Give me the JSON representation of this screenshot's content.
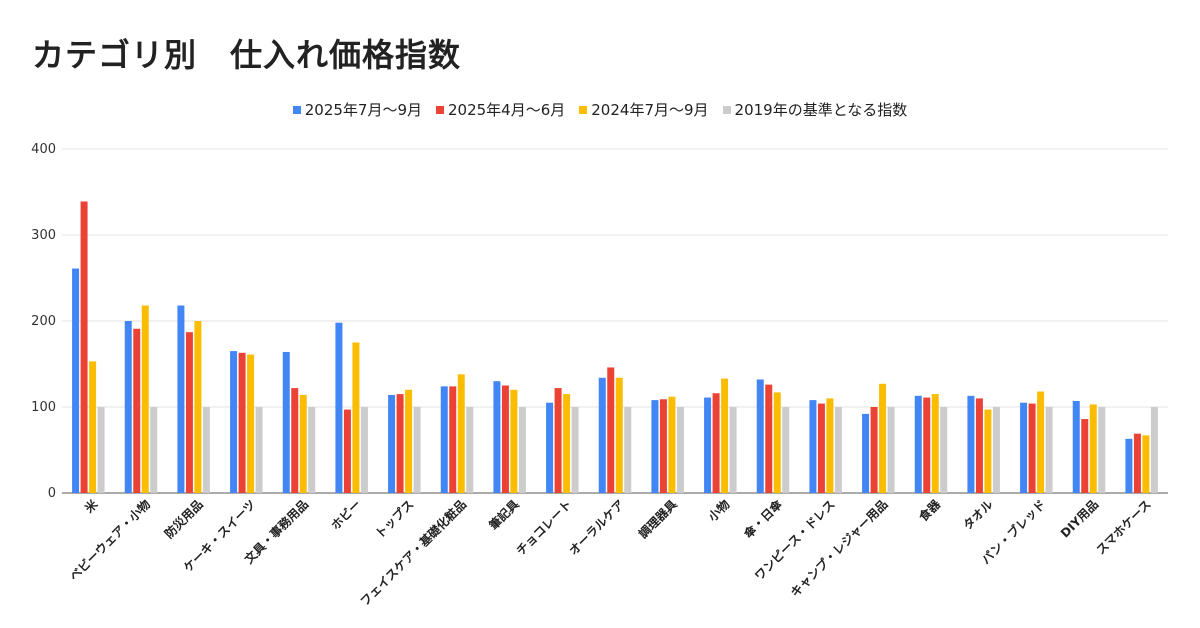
{
  "chart_data": {
    "type": "bar",
    "title": "カテゴリ別　仕入れ価格指数",
    "xlabel": "",
    "ylabel": "",
    "ylim": [
      0,
      400
    ],
    "yticks": [
      0,
      100,
      200,
      300,
      400
    ],
    "grid": true,
    "legend_position": "top",
    "categories": [
      "米",
      "ベビーウェア・小物",
      "防災用品",
      "ケーキ・スイーツ",
      "文具・事務用品",
      "ホビー",
      "トップス",
      "フェイスケア・基礎化粧品",
      "筆記具",
      "チョコレート",
      "オーラルケア",
      "調理器具",
      "小物",
      "傘・日傘",
      "ワンピース・ドレス",
      "キャンプ・レジャー用品",
      "食器",
      "タオル",
      "パン・ブレッド",
      "DIY用品",
      "スマホケース"
    ],
    "series": [
      {
        "name": "2025年7月～9月",
        "color": "#4285F4",
        "values": [
          261,
          200,
          218,
          165,
          164,
          198,
          114,
          124,
          130,
          105,
          134,
          108,
          111,
          132,
          108,
          92,
          113,
          113,
          105,
          107,
          63
        ]
      },
      {
        "name": "2025年4月～6月",
        "color": "#EA4335",
        "values": [
          339,
          191,
          187,
          163,
          122,
          97,
          115,
          124,
          125,
          122,
          146,
          109,
          116,
          126,
          104,
          100,
          111,
          110,
          104,
          86,
          69
        ]
      },
      {
        "name": "2024年7月～9月",
        "color": "#FBBC04",
        "values": [
          153,
          218,
          200,
          161,
          114,
          175,
          120,
          138,
          120,
          115,
          134,
          112,
          133,
          117,
          110,
          127,
          115,
          97,
          118,
          103,
          67
        ]
      },
      {
        "name": "2019年の基準となる指数",
        "color": "#CCCCCC",
        "values": [
          100,
          100,
          100,
          100,
          100,
          100,
          100,
          100,
          100,
          100,
          100,
          100,
          100,
          100,
          100,
          100,
          100,
          100,
          100,
          100,
          100
        ]
      }
    ]
  }
}
